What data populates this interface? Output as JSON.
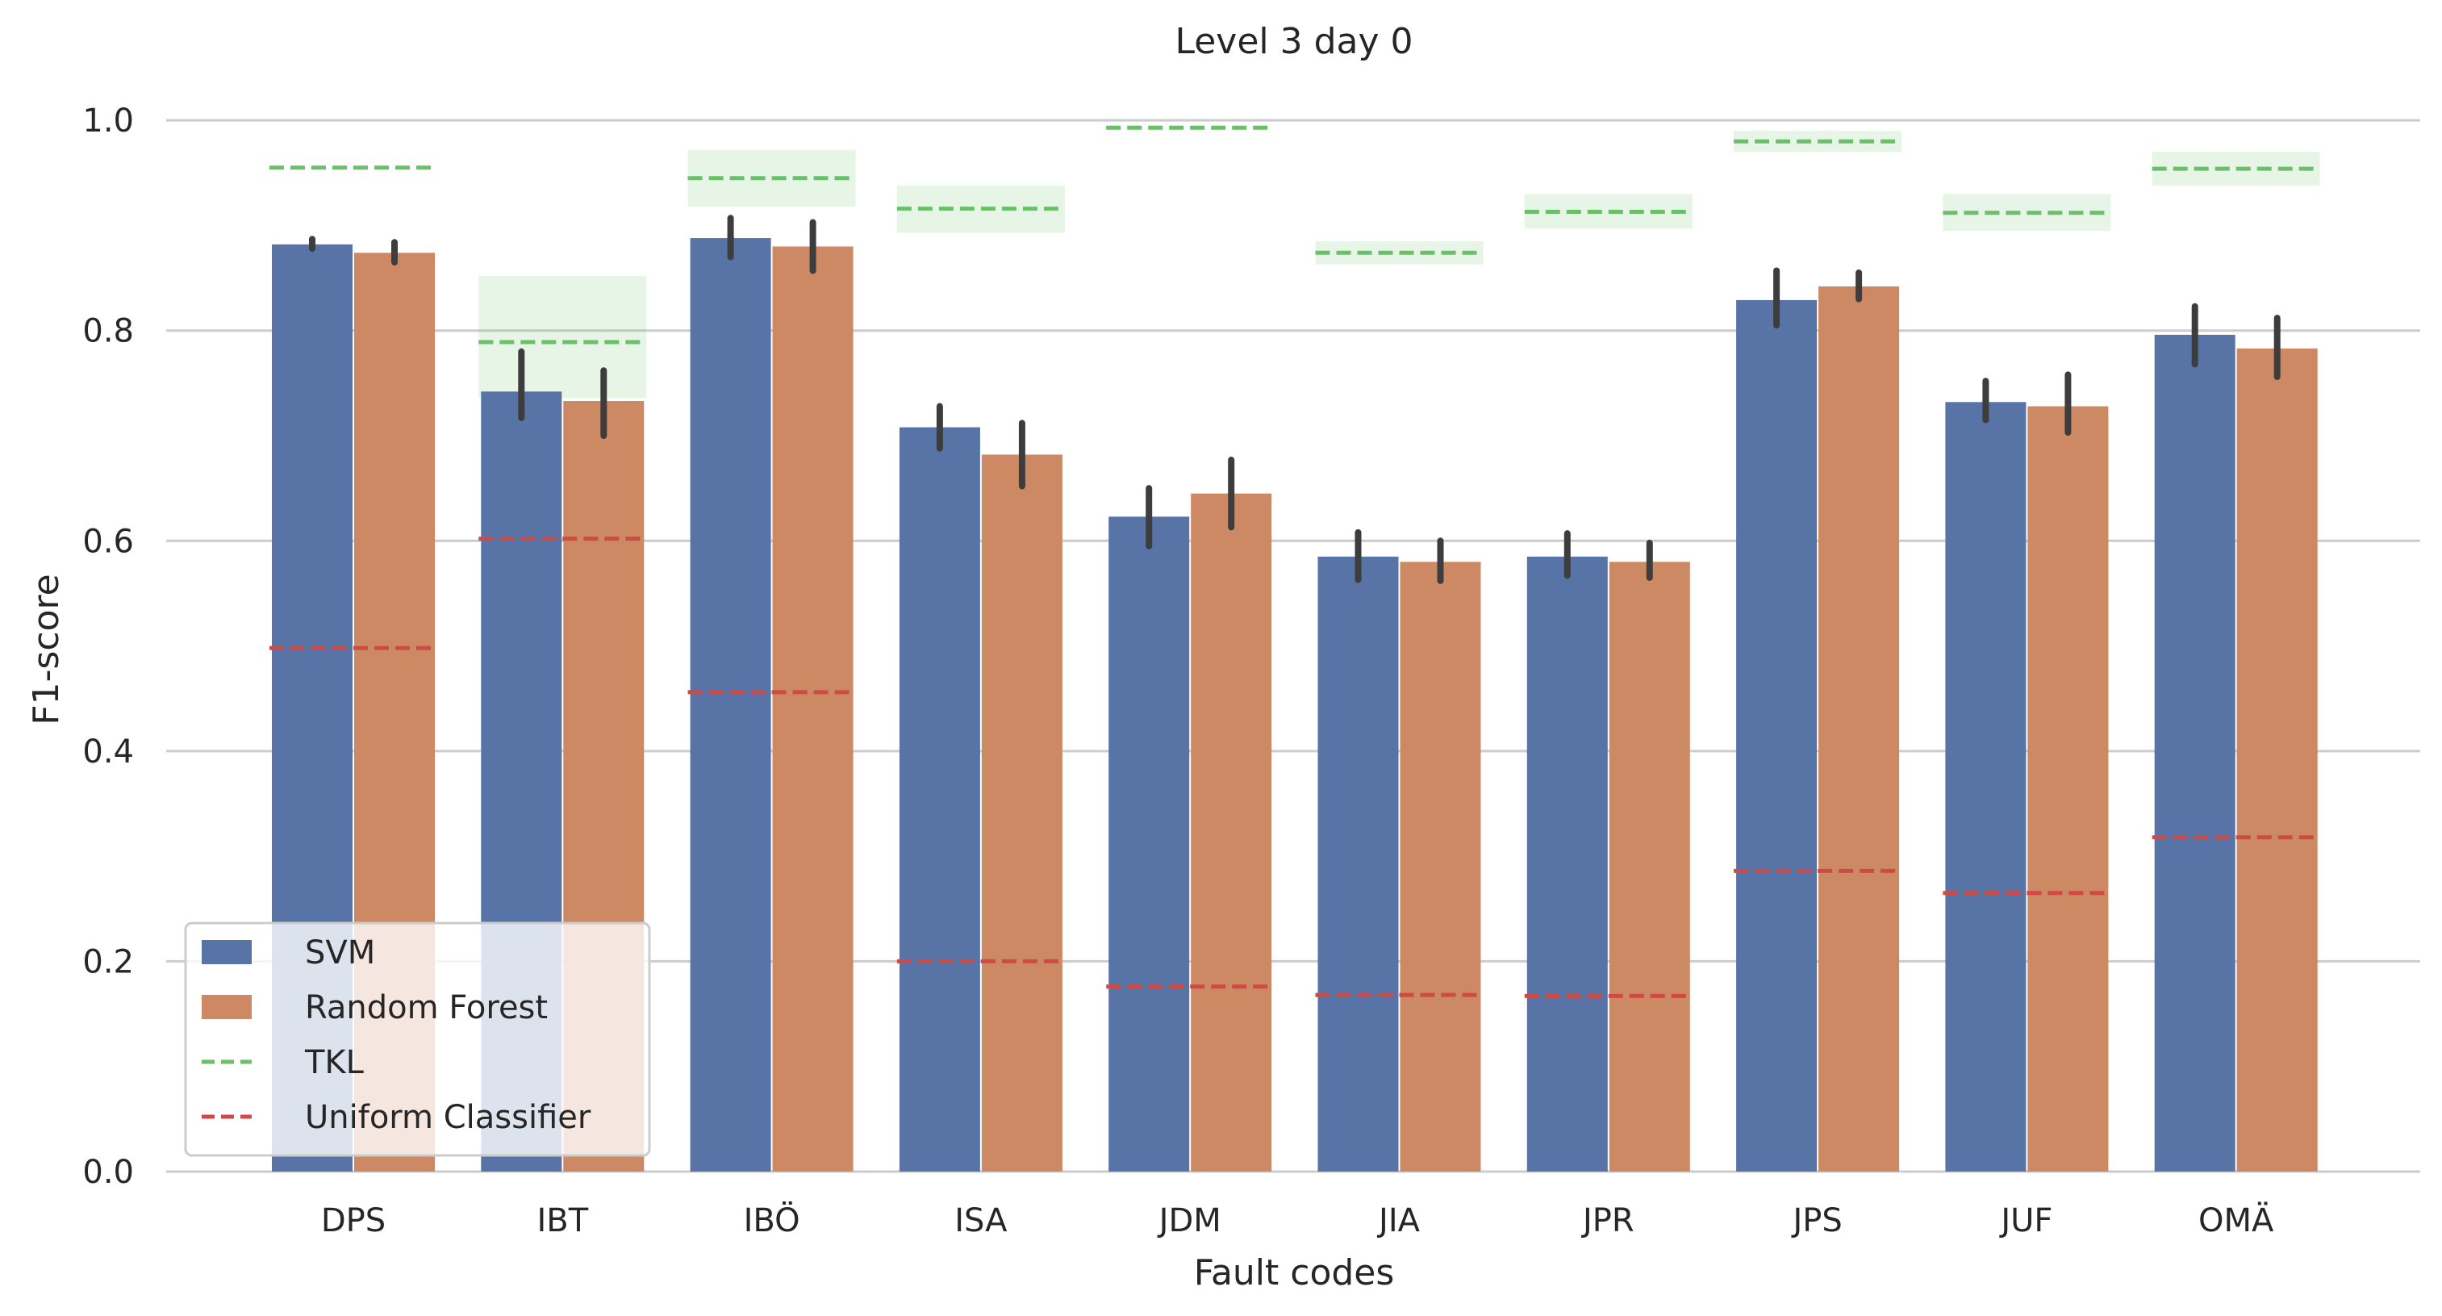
{
  "chart_data": {
    "type": "bar",
    "title": "Level 3 day 0",
    "xlabel": "Fault codes",
    "ylabel": "F1-score",
    "ylim": [
      0,
      1.05
    ],
    "yticks": [
      "0.0",
      "0.2",
      "0.4",
      "0.6",
      "0.8",
      "1.0"
    ],
    "ytick_values": [
      0,
      0.2,
      0.4,
      0.6,
      0.8,
      1.0
    ],
    "grid": true,
    "categories": [
      "DPS",
      "IBT",
      "IBÖ",
      "ISA",
      "JDM",
      "JIA",
      "JPR",
      "JPS",
      "JUF",
      "OMÄ"
    ],
    "series": [
      {
        "name": "SVM",
        "color": "#5874a6",
        "values": [
          0.882,
          0.742,
          0.888,
          0.708,
          0.623,
          0.585,
          0.585,
          0.829,
          0.732,
          0.796
        ],
        "err_low": [
          0.878,
          0.717,
          0.87,
          0.688,
          0.595,
          0.563,
          0.567,
          0.805,
          0.715,
          0.768
        ],
        "err_high": [
          0.887,
          0.78,
          0.907,
          0.728,
          0.65,
          0.608,
          0.607,
          0.857,
          0.752,
          0.823
        ]
      },
      {
        "name": "Random Forest",
        "color": "#cc8963",
        "values": [
          0.874,
          0.733,
          0.88,
          0.682,
          0.645,
          0.58,
          0.58,
          0.842,
          0.728,
          0.783
        ],
        "err_low": [
          0.865,
          0.7,
          0.857,
          0.652,
          0.613,
          0.562,
          0.565,
          0.83,
          0.703,
          0.756
        ],
        "err_high": [
          0.884,
          0.762,
          0.903,
          0.712,
          0.677,
          0.6,
          0.598,
          0.855,
          0.758,
          0.812
        ]
      }
    ],
    "reference_lines": [
      {
        "name": "TKL",
        "color": "#6abf69",
        "values": [
          0.955,
          0.789,
          0.945,
          0.916,
          0.993,
          0.874,
          0.913,
          0.98,
          0.912,
          0.954
        ],
        "band_low": [
          0.955,
          0.736,
          0.918,
          0.893,
          0.993,
          0.863,
          0.897,
          0.97,
          0.895,
          0.938
        ],
        "band_high": [
          0.955,
          0.852,
          0.972,
          0.938,
          0.993,
          0.885,
          0.93,
          0.99,
          0.93,
          0.97
        ]
      },
      {
        "name": "Uniform Classifier",
        "color": "#d04a45",
        "values": [
          0.498,
          0.602,
          0.456,
          0.2,
          0.176,
          0.168,
          0.167,
          0.286,
          0.265,
          0.318
        ]
      }
    ],
    "legend": {
      "position": "lower-left",
      "entries": [
        "SVM",
        "Random Forest",
        "TKL",
        "Uniform Classifier"
      ]
    }
  }
}
